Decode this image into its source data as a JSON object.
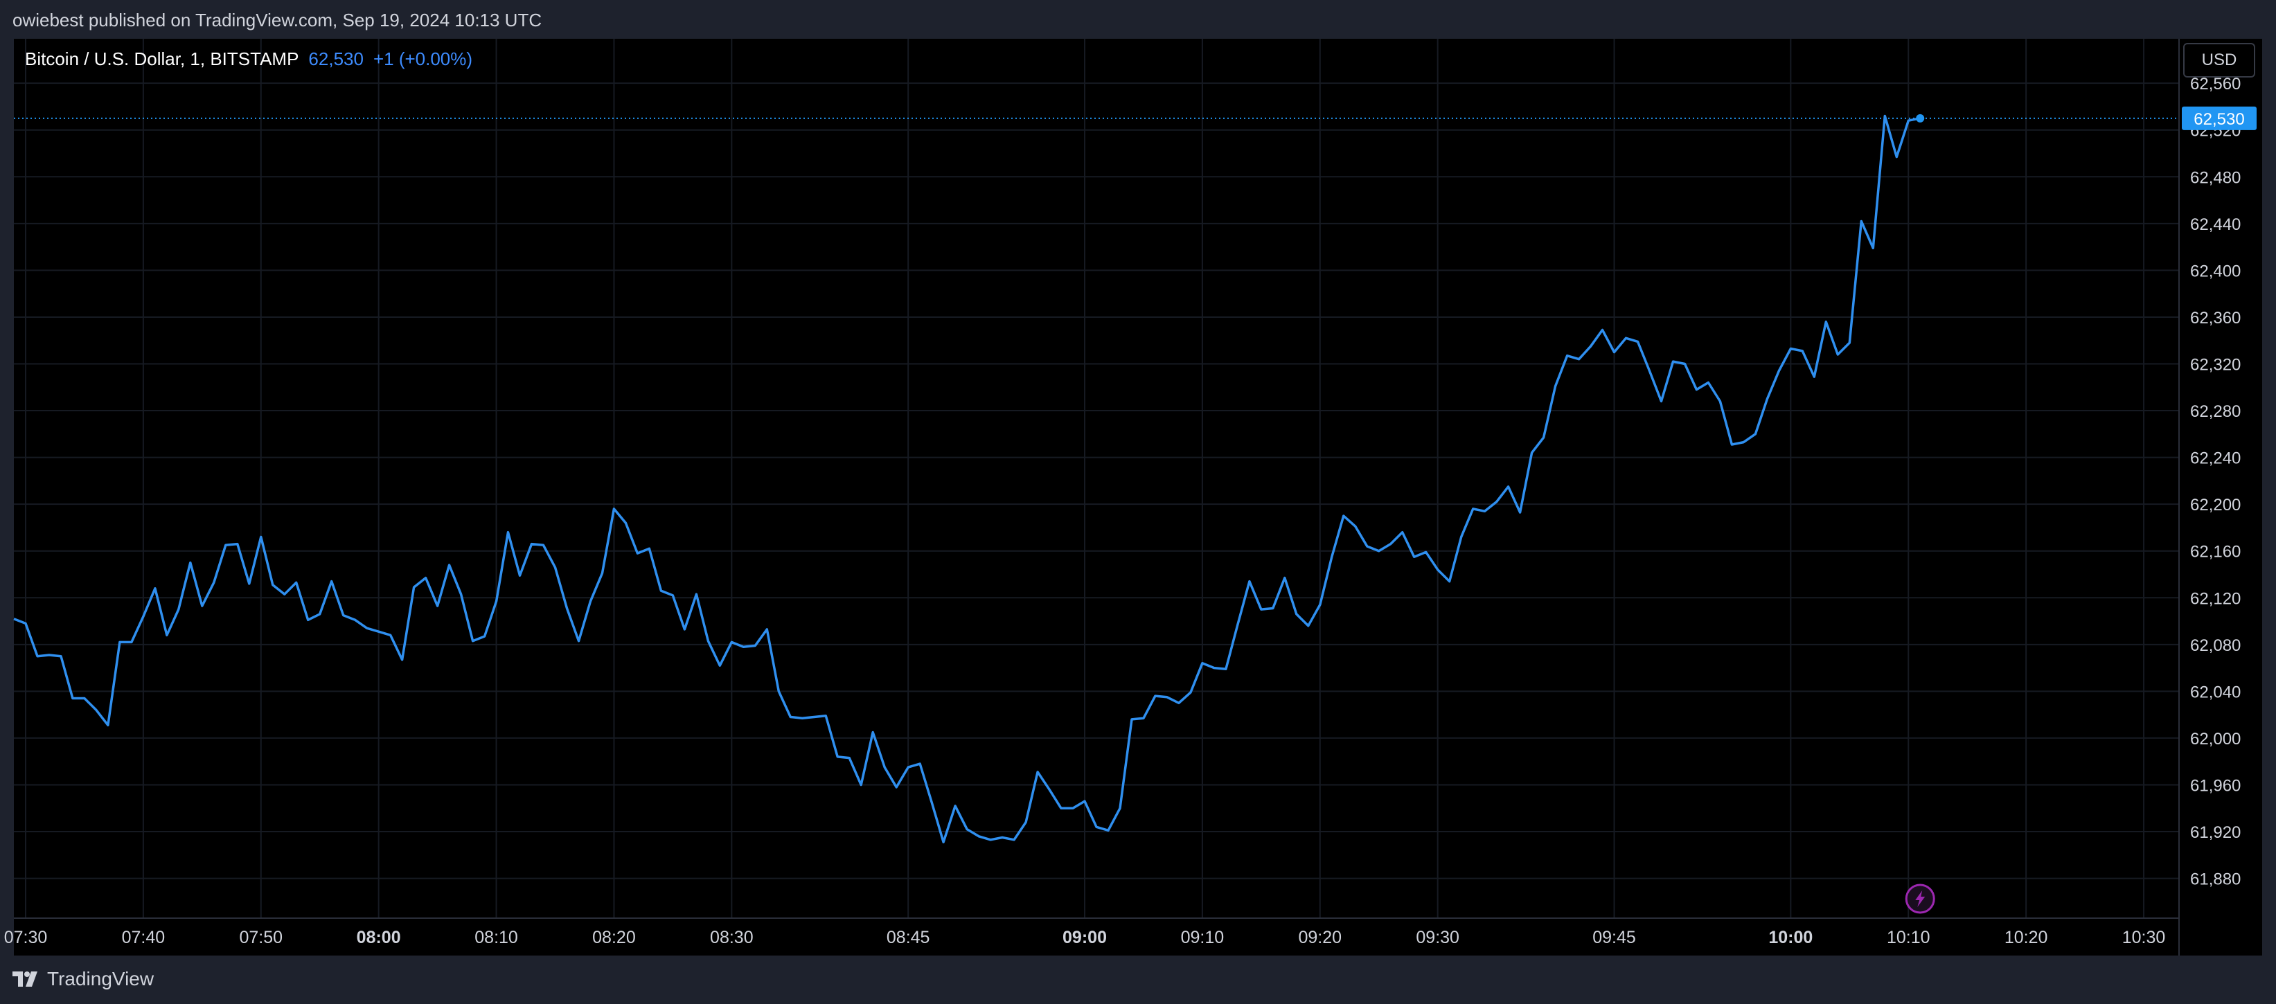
{
  "header": {
    "publisher_text": "owiebest published on TradingView.com, Sep 19, 2024 10:13 UTC"
  },
  "legend": {
    "symbol": "Bitcoin / U.S. Dollar, 1, BITSTAMP",
    "last_price": "62,530",
    "change": "+1 (+0.00%)"
  },
  "price_axis": {
    "currency_label": "USD",
    "current_price_label": "62,530"
  },
  "footer": {
    "brand_name": "TradingView"
  },
  "colors": {
    "line": "#2f8fef",
    "price_tag": "#2196f3",
    "grid": "#161a22",
    "flash_icon": "#9c27b0"
  },
  "icons": {
    "brand": "tradingview-logo-icon",
    "flash": "lightning-icon"
  },
  "chart_data": {
    "type": "line",
    "title": "Bitcoin / U.S. Dollar, 1, BITSTAMP",
    "xlabel": "",
    "ylabel": "",
    "ylim": [
      61846,
      62598
    ],
    "xlim": [
      "07:29",
      "10:33"
    ],
    "y_ticks": [
      61880,
      61920,
      61960,
      62000,
      62040,
      62080,
      62120,
      62160,
      62200,
      62240,
      62280,
      62320,
      62360,
      62400,
      62440,
      62480,
      62520,
      62560
    ],
    "y_tick_labels": [
      "61,880",
      "61,920",
      "61,960",
      "62,000",
      "62,040",
      "62,080",
      "62,120",
      "62,160",
      "62,200",
      "62,240",
      "62,280",
      "62,320",
      "62,360",
      "62,400",
      "62,440",
      "62,480",
      "62,520",
      "62,560"
    ],
    "x_ticks": [
      {
        "time": "07:30",
        "label": "07:30",
        "bold": false
      },
      {
        "time": "07:40",
        "label": "07:40",
        "bold": false
      },
      {
        "time": "07:50",
        "label": "07:50",
        "bold": false
      },
      {
        "time": "08:00",
        "label": "08:00",
        "bold": true
      },
      {
        "time": "08:10",
        "label": "08:10",
        "bold": false
      },
      {
        "time": "08:20",
        "label": "08:20",
        "bold": false
      },
      {
        "time": "08:30",
        "label": "08:30",
        "bold": false
      },
      {
        "time": "08:45",
        "label": "08:45",
        "bold": false
      },
      {
        "time": "09:00",
        "label": "09:00",
        "bold": true
      },
      {
        "time": "09:10",
        "label": "09:10",
        "bold": false
      },
      {
        "time": "09:20",
        "label": "09:20",
        "bold": false
      },
      {
        "time": "09:30",
        "label": "09:30",
        "bold": false
      },
      {
        "time": "09:45",
        "label": "09:45",
        "bold": false
      },
      {
        "time": "10:00",
        "label": "10:00",
        "bold": true
      },
      {
        "time": "10:10",
        "label": "10:10",
        "bold": false
      },
      {
        "time": "10:20",
        "label": "10:20",
        "bold": false
      },
      {
        "time": "10:30",
        "label": "10:30",
        "bold": false
      }
    ],
    "current_price": 62530,
    "grid": true,
    "series": [
      {
        "values": [
          [
            "07:29",
            62102
          ],
          [
            "07:30",
            62098
          ],
          [
            "07:31",
            62070
          ],
          [
            "07:32",
            62071
          ],
          [
            "07:33",
            62070
          ],
          [
            "07:34",
            62034
          ],
          [
            "07:35",
            62034
          ],
          [
            "07:36",
            62024
          ],
          [
            "07:37",
            62011
          ],
          [
            "07:38",
            62082
          ],
          [
            "07:39",
            62082
          ],
          [
            "07:40",
            62104
          ],
          [
            "07:41",
            62128
          ],
          [
            "07:42",
            62088
          ],
          [
            "07:43",
            62110
          ],
          [
            "07:44",
            62150
          ],
          [
            "07:45",
            62113
          ],
          [
            "07:46",
            62133
          ],
          [
            "07:47",
            62165
          ],
          [
            "07:48",
            62166
          ],
          [
            "07:49",
            62132
          ],
          [
            "07:50",
            62172
          ],
          [
            "07:51",
            62131
          ],
          [
            "07:52",
            62123
          ],
          [
            "07:53",
            62133
          ],
          [
            "07:54",
            62101
          ],
          [
            "07:55",
            62106
          ],
          [
            "07:56",
            62134
          ],
          [
            "07:57",
            62105
          ],
          [
            "07:58",
            62101
          ],
          [
            "07:59",
            62094
          ],
          [
            "08:00",
            62091
          ],
          [
            "08:01",
            62088
          ],
          [
            "08:02",
            62067
          ],
          [
            "08:03",
            62129
          ],
          [
            "08:04",
            62137
          ],
          [
            "08:05",
            62113
          ],
          [
            "08:06",
            62148
          ],
          [
            "08:07",
            62123
          ],
          [
            "08:08",
            62083
          ],
          [
            "08:09",
            62087
          ],
          [
            "08:10",
            62117
          ],
          [
            "08:11",
            62176
          ],
          [
            "08:12",
            62139
          ],
          [
            "08:13",
            62166
          ],
          [
            "08:14",
            62165
          ],
          [
            "08:15",
            62146
          ],
          [
            "08:16",
            62111
          ],
          [
            "08:17",
            62083
          ],
          [
            "08:18",
            62117
          ],
          [
            "08:19",
            62141
          ],
          [
            "08:20",
            62196
          ],
          [
            "08:21",
            62184
          ],
          [
            "08:22",
            62158
          ],
          [
            "08:23",
            62162
          ],
          [
            "08:24",
            62126
          ],
          [
            "08:25",
            62122
          ],
          [
            "08:26",
            62093
          ],
          [
            "08:27",
            62123
          ],
          [
            "08:28",
            62083
          ],
          [
            "08:29",
            62062
          ],
          [
            "08:30",
            62082
          ],
          [
            "08:31",
            62078
          ],
          [
            "08:32",
            62079
          ],
          [
            "08:33",
            62093
          ],
          [
            "08:34",
            62040
          ],
          [
            "08:35",
            62018
          ],
          [
            "08:36",
            62017
          ],
          [
            "08:37",
            62018
          ],
          [
            "08:38",
            62019
          ],
          [
            "08:39",
            61984
          ],
          [
            "08:40",
            61983
          ],
          [
            "08:41",
            61960
          ],
          [
            "08:42",
            62005
          ],
          [
            "08:43",
            61975
          ],
          [
            "08:44",
            61958
          ],
          [
            "08:45",
            61975
          ],
          [
            "08:46",
            61978
          ],
          [
            "08:47",
            61945
          ],
          [
            "08:48",
            61911
          ],
          [
            "08:49",
            61942
          ],
          [
            "08:50",
            61922
          ],
          [
            "08:51",
            61916
          ],
          [
            "08:52",
            61913
          ],
          [
            "08:53",
            61915
          ],
          [
            "08:54",
            61913
          ],
          [
            "08:55",
            61928
          ],
          [
            "08:56",
            61971
          ],
          [
            "08:57",
            61956
          ],
          [
            "08:58",
            61940
          ],
          [
            "08:59",
            61940
          ],
          [
            "09:00",
            61946
          ],
          [
            "09:01",
            61924
          ],
          [
            "09:02",
            61921
          ],
          [
            "09:03",
            61940
          ],
          [
            "09:04",
            62016
          ],
          [
            "09:05",
            62017
          ],
          [
            "09:06",
            62036
          ],
          [
            "09:07",
            62035
          ],
          [
            "09:08",
            62030
          ],
          [
            "09:09",
            62039
          ],
          [
            "09:10",
            62064
          ],
          [
            "09:11",
            62060
          ],
          [
            "09:12",
            62059
          ],
          [
            "09:13",
            62097
          ],
          [
            "09:14",
            62134
          ],
          [
            "09:15",
            62110
          ],
          [
            "09:16",
            62111
          ],
          [
            "09:17",
            62137
          ],
          [
            "09:18",
            62106
          ],
          [
            "09:19",
            62096
          ],
          [
            "09:20",
            62114
          ],
          [
            "09:21",
            62155
          ],
          [
            "09:22",
            62190
          ],
          [
            "09:23",
            62181
          ],
          [
            "09:24",
            62164
          ],
          [
            "09:25",
            62160
          ],
          [
            "09:26",
            62166
          ],
          [
            "09:27",
            62176
          ],
          [
            "09:28",
            62155
          ],
          [
            "09:29",
            62159
          ],
          [
            "09:30",
            62144
          ],
          [
            "09:31",
            62134
          ],
          [
            "09:32",
            62172
          ],
          [
            "09:33",
            62196
          ],
          [
            "09:34",
            62194
          ],
          [
            "09:35",
            62202
          ],
          [
            "09:36",
            62215
          ],
          [
            "09:37",
            62193
          ],
          [
            "09:38",
            62244
          ],
          [
            "09:39",
            62257
          ],
          [
            "09:40",
            62301
          ],
          [
            "09:41",
            62327
          ],
          [
            "09:42",
            62324
          ],
          [
            "09:43",
            62335
          ],
          [
            "09:44",
            62349
          ],
          [
            "09:45",
            62330
          ],
          [
            "09:46",
            62342
          ],
          [
            "09:47",
            62339
          ],
          [
            "09:48",
            62314
          ],
          [
            "09:49",
            62288
          ],
          [
            "09:50",
            62322
          ],
          [
            "09:51",
            62320
          ],
          [
            "09:52",
            62298
          ],
          [
            "09:53",
            62304
          ],
          [
            "09:54",
            62288
          ],
          [
            "09:55",
            62251
          ],
          [
            "09:56",
            62253
          ],
          [
            "09:57",
            62260
          ],
          [
            "09:58",
            62290
          ],
          [
            "09:59",
            62314
          ],
          [
            "10:00",
            62333
          ],
          [
            "10:01",
            62331
          ],
          [
            "10:02",
            62309
          ],
          [
            "10:03",
            62356
          ],
          [
            "10:04",
            62328
          ],
          [
            "10:05",
            62338
          ],
          [
            "10:06",
            62442
          ],
          [
            "10:07",
            62419
          ],
          [
            "10:08",
            62532
          ],
          [
            "10:09",
            62497
          ],
          [
            "10:10",
            62528
          ],
          [
            "10:11",
            62530
          ]
        ]
      }
    ]
  }
}
